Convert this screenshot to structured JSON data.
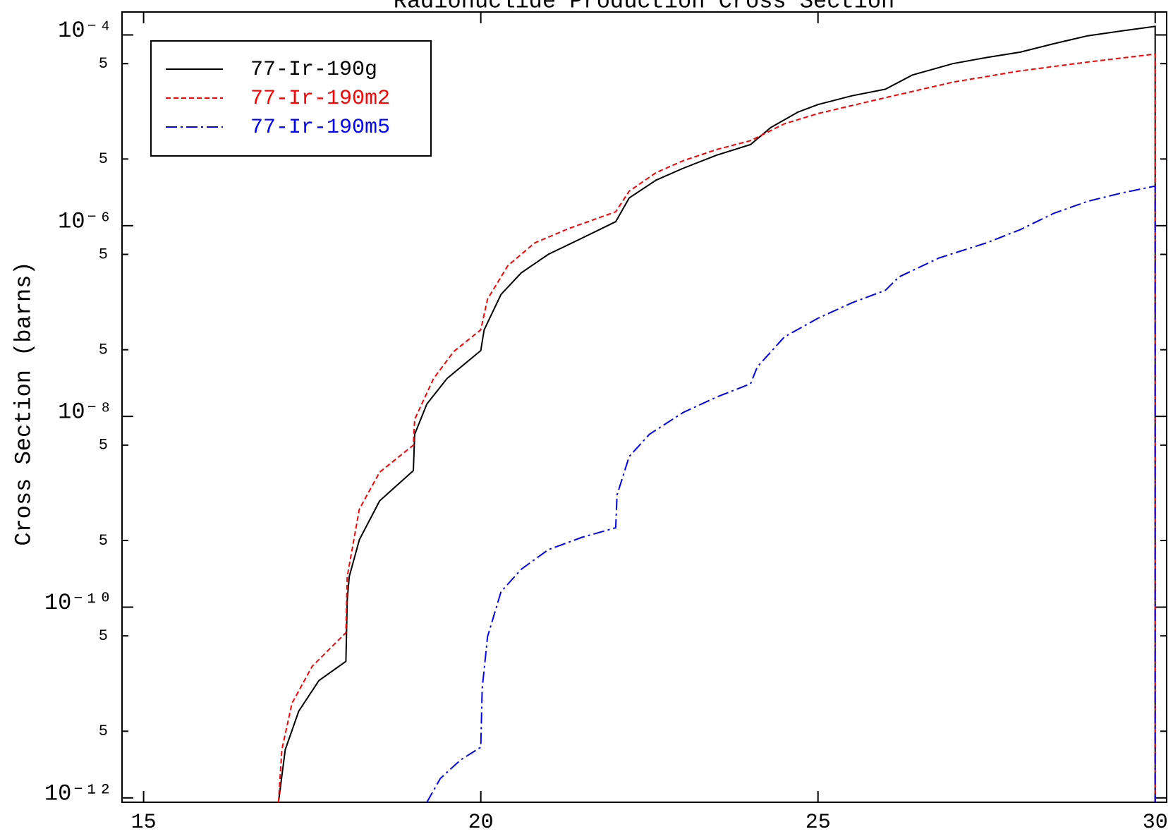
{
  "chart_data": {
    "type": "line",
    "title": "Radionuclide Production Cross Section",
    "y_label": "Cross Section (barns)",
    "y_scale": "log",
    "xlim": [
      14.68,
      30.17
    ],
    "ylim": [
      9e-13,
      0.000174
    ],
    "xticks": [
      15,
      20,
      25,
      30
    ],
    "yticks": [
      {
        "value": 1e-12,
        "label": "10⁻¹²"
      },
      {
        "value": 5e-12,
        "label": "5"
      },
      {
        "value": 5e-11,
        "label": "5"
      },
      {
        "value": 1e-10,
        "label": "10⁻¹⁰"
      },
      {
        "value": 5e-10,
        "label": "5"
      },
      {
        "value": 5e-09,
        "label": "5"
      },
      {
        "value": 1e-08,
        "label": "10⁻⁸"
      },
      {
        "value": 5e-08,
        "label": "5"
      },
      {
        "value": 5e-07,
        "label": "5"
      },
      {
        "value": 1e-06,
        "label": "10⁻⁶"
      },
      {
        "value": 5e-06,
        "label": "5"
      },
      {
        "value": 5e-05,
        "label": "5"
      },
      {
        "value": 0.0001,
        "label": "10⁻⁴"
      }
    ],
    "legend_position": "upper left",
    "series": [
      {
        "name": "77-Ir-190g",
        "color": "#000000",
        "linestyle": "solid",
        "x": [
          17.0,
          17.1,
          17.3,
          17.6,
          18.0,
          18.02,
          18.05,
          18.2,
          18.5,
          19.0,
          19.02,
          19.2,
          19.5,
          20.0,
          20.05,
          20.3,
          20.6,
          21,
          21.5,
          22.0,
          22.2,
          22.6,
          23.0,
          23.5,
          24.0,
          24.3,
          24.7,
          25.0,
          25.5,
          26.0,
          26.4,
          27.0,
          27.5,
          28.0,
          28.5,
          29.0,
          29.5,
          30.0,
          30.0
        ],
        "values": [
          9e-13,
          3.2e-12,
          8.1e-12,
          1.7e-11,
          2.7e-11,
          1.2e-10,
          2.1e-10,
          5.1e-10,
          1.3e-09,
          2.7e-09,
          6.5e-09,
          1.35e-08,
          2.5e-08,
          4.9e-08,
          8.1e-08,
          1.9e-07,
          3.2e-07,
          5e-07,
          7.4e-07,
          1.1e-06,
          1.95e-06,
          3e-06,
          4e-06,
          5.5e-06,
          7.1e-06,
          1.07e-05,
          1.55e-05,
          1.86e-05,
          2.3e-05,
          2.7e-05,
          3.8e-05,
          5e-05,
          5.8e-05,
          6.6e-05,
          8.1e-05,
          9.8e-05,
          0.00011,
          0.000123,
          9e-13
        ]
      },
      {
        "name": "77-Ir-190m2",
        "color": "#ff0000",
        "linestyle": "dashed",
        "x": [
          17.0,
          17.05,
          17.2,
          17.5,
          18.0,
          18.02,
          18.2,
          18.5,
          19.0,
          19.02,
          19.3,
          19.6,
          20.0,
          20.1,
          20.4,
          20.8,
          21.3,
          22.0,
          22.2,
          22.6,
          23.0,
          23.5,
          24.0,
          24.5,
          25.0,
          26.0,
          27.0,
          28.0,
          29.0,
          30.0,
          30.0
        ],
        "values": [
          9e-13,
          3.2e-12,
          9.8e-12,
          2.4e-11,
          5.4e-11,
          2.1e-10,
          1.07e-09,
          2.6e-09,
          5e-09,
          9.3e-09,
          2.5e-08,
          4.8e-08,
          8.1e-08,
          1.7e-07,
          3.8e-07,
          6.6e-07,
          9.3e-07,
          1.4e-06,
          2.3e-06,
          3.6e-06,
          4.8e-06,
          6.3e-06,
          7.8e-06,
          1.17e-05,
          1.5e-05,
          2.2e-05,
          3.2e-05,
          4.2e-05,
          5.2e-05,
          6.3e-05,
          9e-13
        ]
      },
      {
        "name": "77-Ir-190m5",
        "color": "#0000ff",
        "linestyle": "dashdot",
        "x": [
          19.2,
          19.4,
          19.7,
          20.0,
          20.02,
          20.1,
          20.3,
          20.6,
          21.0,
          21.5,
          22.0,
          22.02,
          22.2,
          22.5,
          23.0,
          23.5,
          24.0,
          24.1,
          24.5,
          25.0,
          25.5,
          26.0,
          26.2,
          26.8,
          27.5,
          28.0,
          28.5,
          29.0,
          29.5,
          30.0,
          30.0
        ],
        "values": [
          9e-13,
          1.6e-12,
          2.5e-12,
          3.4e-12,
          1.4e-11,
          4.9e-11,
          1.45e-10,
          2.5e-10,
          4e-10,
          5.4e-10,
          6.8e-10,
          1.5e-09,
          3.8e-09,
          6.5e-09,
          1.1e-08,
          1.6e-08,
          2.2e-08,
          3.3e-08,
          6.8e-08,
          1.07e-07,
          1.55e-07,
          2.1e-07,
          2.9e-07,
          4.6e-07,
          6.6e-07,
          9.1e-07,
          1.35e-06,
          1.8e-06,
          2.2e-06,
          2.6e-06,
          9e-13
        ]
      }
    ]
  }
}
